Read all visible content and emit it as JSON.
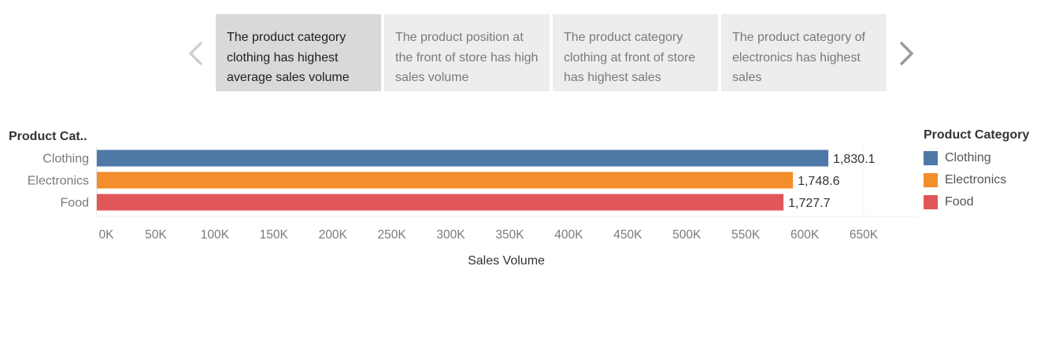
{
  "story": {
    "points": [
      {
        "text": "The product category clothing has highest average sales volume",
        "active": true
      },
      {
        "text": "The product position at the front of store has high sales volume",
        "active": false
      },
      {
        "text": "The product category clothing at front of store has highest sales",
        "active": false
      },
      {
        "text": "The product category of electronics has highest sales",
        "active": false
      }
    ]
  },
  "legend": {
    "title": "Product Category",
    "items": [
      {
        "label": "Clothing",
        "color": "#4e79a7"
      },
      {
        "label": "Electronics",
        "color": "#f28e2b"
      },
      {
        "label": "Food",
        "color": "#e15759"
      }
    ]
  },
  "chart_data": {
    "type": "bar",
    "orientation": "horizontal",
    "categories": [
      "Clothing",
      "Electronics",
      "Food"
    ],
    "values": [
      620000,
      590000,
      582000
    ],
    "data_labels": [
      "1,830.1",
      "1,748.6",
      "1,727.7"
    ],
    "colors": [
      "#4e79a7",
      "#f28e2b",
      "#e15759"
    ],
    "ylabel": "Product Cat..",
    "xlabel": "Sales Volume",
    "xlim": [
      0,
      650000
    ],
    "xticks": [
      0,
      50000,
      100000,
      150000,
      200000,
      250000,
      300000,
      350000,
      400000,
      450000,
      500000,
      550000,
      600000,
      650000
    ],
    "xtick_labels": [
      "0K",
      "50K",
      "100K",
      "150K",
      "200K",
      "250K",
      "300K",
      "350K",
      "400K",
      "450K",
      "500K",
      "550K",
      "600K",
      "650K"
    ],
    "grid": false,
    "legend_position": "right"
  }
}
